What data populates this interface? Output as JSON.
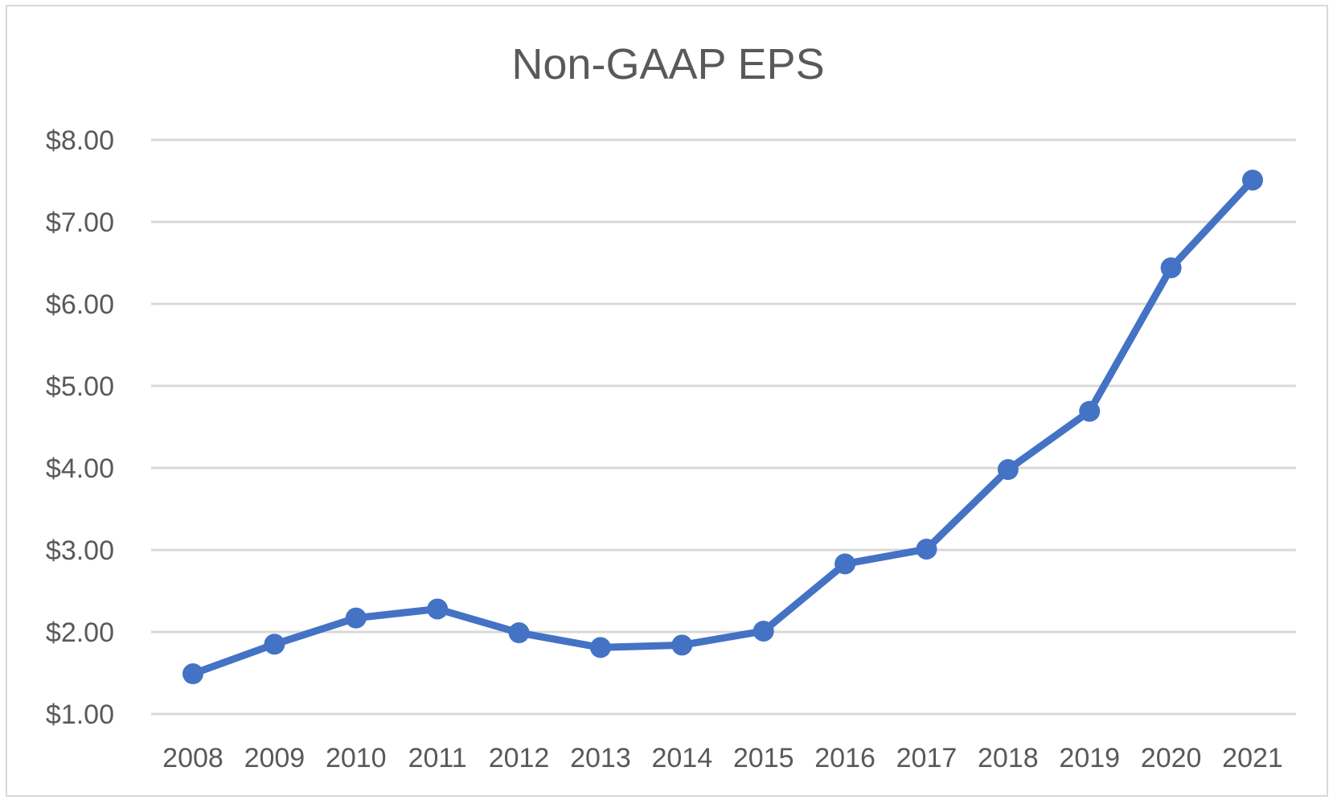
{
  "chart_data": {
    "type": "line",
    "title": "Non-GAAP EPS",
    "xlabel": "",
    "ylabel": "",
    "categories": [
      "2008",
      "2009",
      "2010",
      "2011",
      "2012",
      "2013",
      "2014",
      "2015",
      "2016",
      "2017",
      "2018",
      "2019",
      "2020",
      "2021"
    ],
    "series": [
      {
        "name": "Non-GAAP EPS",
        "values": [
          1.49,
          1.85,
          2.17,
          2.28,
          1.99,
          1.81,
          1.84,
          2.01,
          2.83,
          3.01,
          3.98,
          4.69,
          6.44,
          7.51
        ],
        "color": "#4472c4"
      }
    ],
    "ylim": [
      1,
      8
    ],
    "yticks": [
      1,
      2,
      3,
      4,
      5,
      6,
      7,
      8
    ],
    "ytick_labels": [
      "$1.00",
      "$2.00",
      "$3.00",
      "$4.00",
      "$5.00",
      "$6.00",
      "$7.00",
      "$8.00"
    ],
    "grid": true,
    "legend": "none"
  }
}
